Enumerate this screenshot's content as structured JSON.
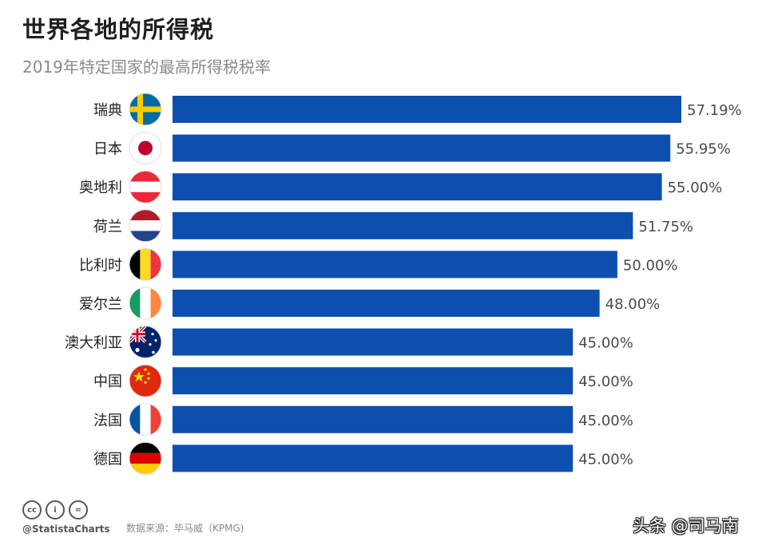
{
  "title": "世界各地的所得税",
  "subtitle": "2019年特定国家的最高所得税税率",
  "chart_data": {
    "type": "bar",
    "orientation": "horizontal",
    "categories": [
      "瑞典",
      "日本",
      "奥地利",
      "荷兰",
      "比利时",
      "爱尔兰",
      "澳大利亚",
      "中国",
      "法国",
      "德国"
    ],
    "values": [
      57.19,
      55.95,
      55.0,
      51.75,
      50.0,
      48.0,
      45.0,
      45.0,
      45.0,
      45.0
    ],
    "value_labels": [
      "57.19%",
      "55.95%",
      "55.00%",
      "51.75%",
      "50.00%",
      "48.00%",
      "45.00%",
      "45.00%",
      "45.00%",
      "45.00%"
    ],
    "unit": "%",
    "bar_color": "#0d4faf",
    "flag_icons": [
      "sweden-flag-icon",
      "japan-flag-icon",
      "austria-flag-icon",
      "netherlands-flag-icon",
      "belgium-flag-icon",
      "ireland-flag-icon",
      "australia-flag-icon",
      "china-flag-icon",
      "france-flag-icon",
      "germany-flag-icon"
    ],
    "grid": false,
    "legend": "none"
  },
  "footer": {
    "license_icons": [
      "cc-icon",
      "by-icon",
      "nd-icon"
    ],
    "license_glyphs": [
      "cc",
      "i",
      "="
    ],
    "handle": "@StatistaCharts",
    "source": "数据来源：毕马威（KPMG)",
    "watermark": "头条 @司马南"
  }
}
